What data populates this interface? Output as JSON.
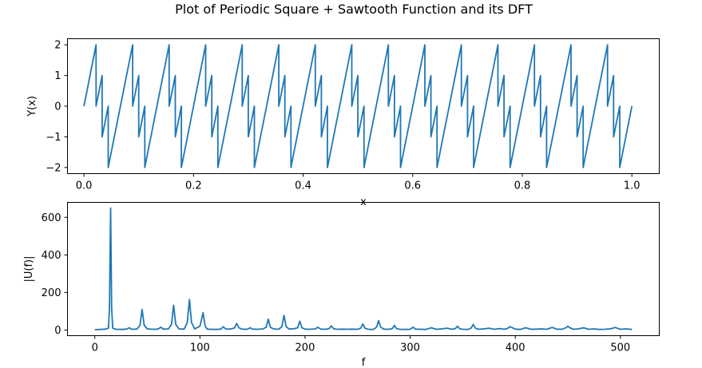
{
  "figure": {
    "title": "Plot of Periodic Square + Sawtooth Function and its DFT"
  },
  "chart_data": [
    {
      "type": "line",
      "title": "",
      "xlabel": "x",
      "ylabel": "Y(x)",
      "xlim": [
        -0.03,
        1.05
      ],
      "ylim": [
        -2.2,
        2.2
      ],
      "xticks": [
        0.0,
        0.2,
        0.4,
        0.6,
        0.8,
        1.0
      ],
      "xtick_labels": [
        "0.0",
        "0.2",
        "0.4",
        "0.6",
        "0.8",
        "1.0"
      ],
      "yticks": [
        2,
        1,
        0,
        -1,
        -2
      ],
      "ytick_labels": [
        "2",
        "1",
        "0",
        "−1",
        "−2"
      ],
      "grid": false,
      "color": "#1f77b4",
      "series": [
        {
          "x": [
            0.0,
            0.0222,
            0.0222,
            0.0333,
            0.0333,
            0.0444,
            0.0444,
            0.0667,
            0.0889,
            0.0889,
            0.1,
            0.1,
            0.1111,
            0.1111,
            0.1333,
            0.1556,
            0.1556,
            0.1667,
            0.1667,
            0.1778,
            0.1778,
            0.2,
            0.2222,
            0.2222,
            0.2333,
            0.2333,
            0.2444,
            0.2444,
            0.2667,
            0.2889,
            0.2889,
            0.3,
            0.3,
            0.3111,
            0.3111,
            0.3333,
            0.3556,
            0.3556,
            0.3667,
            0.3667,
            0.3778,
            0.3778,
            0.4,
            0.4222,
            0.4222,
            0.4333,
            0.4333,
            0.4444,
            0.4444,
            0.4667,
            0.4889,
            0.4889,
            0.5,
            0.5,
            0.5111,
            0.5111,
            0.5333,
            0.5556,
            0.5556,
            0.5667,
            0.5667,
            0.5778,
            0.5778,
            0.6,
            0.6222,
            0.6222,
            0.6333,
            0.6333,
            0.6444,
            0.6444,
            0.6667,
            0.6889,
            0.6889,
            0.7,
            0.7,
            0.7111,
            0.7111,
            0.7333,
            0.7556,
            0.7556,
            0.7667,
            0.7667,
            0.7778,
            0.7778,
            0.8,
            0.8222,
            0.8222,
            0.8333,
            0.8333,
            0.8444,
            0.8444,
            0.8667,
            0.8889,
            0.8889,
            0.9,
            0.9,
            0.9111,
            0.9111,
            0.9333,
            0.9556,
            0.9556,
            0.9667,
            0.9667,
            0.9778,
            0.9778,
            1.0
          ],
          "y": [
            0,
            2,
            0,
            1,
            -1,
            0,
            -2,
            0,
            2,
            0,
            1,
            -1,
            0,
            -2,
            0,
            2,
            0,
            1,
            -1,
            0,
            -2,
            0,
            2,
            0,
            1,
            -1,
            0,
            -2,
            0,
            2,
            0,
            1,
            -1,
            0,
            -2,
            0,
            2,
            0,
            1,
            -1,
            0,
            -2,
            0,
            2,
            0,
            1,
            -1,
            0,
            -2,
            0,
            2,
            0,
            1,
            -1,
            0,
            -2,
            0,
            2,
            0,
            1,
            -1,
            0,
            -2,
            0,
            2,
            0,
            1,
            -1,
            0,
            -2,
            0,
            2,
            0,
            1,
            -1,
            0,
            -2,
            0,
            2,
            0,
            1,
            -1,
            0,
            -2,
            0,
            2,
            0,
            1,
            -1,
            0,
            -2,
            0,
            2,
            0,
            1,
            -1,
            0,
            -2,
            0,
            2,
            0,
            1,
            -1,
            0,
            -2,
            0
          ]
        }
      ]
    },
    {
      "type": "line",
      "title": "",
      "xlabel": "f",
      "ylabel": "|U(f)|",
      "xlim": [
        -26,
        537
      ],
      "ylim": [
        -30,
        680
      ],
      "xticks": [
        0,
        100,
        200,
        300,
        400,
        500
      ],
      "xtick_labels": [
        "0",
        "100",
        "200",
        "300",
        "400",
        "500"
      ],
      "yticks": [
        600,
        400,
        200,
        0
      ],
      "ytick_labels": [
        "600",
        "400",
        "200",
        "0"
      ],
      "grid": false,
      "color": "#1f77b4",
      "series": [
        {
          "x": [
            0,
            5,
            10,
            13,
            14,
            15,
            16,
            17,
            20,
            25,
            30,
            33,
            35,
            40,
            43,
            45,
            47,
            50,
            55,
            60,
            63,
            65,
            70,
            73,
            75,
            77,
            80,
            85,
            88,
            90,
            92,
            95,
            100,
            103,
            105,
            107,
            110,
            115,
            120,
            122,
            125,
            130,
            133,
            135,
            137,
            140,
            145,
            148,
            150,
            155,
            160,
            163,
            165,
            167,
            170,
            175,
            178,
            180,
            182,
            185,
            190,
            193,
            195,
            197,
            200,
            205,
            210,
            212,
            215,
            220,
            223,
            225,
            227,
            230,
            235,
            240,
            245,
            250,
            253,
            255,
            257,
            260,
            265,
            268,
            270,
            272,
            275,
            280,
            283,
            285,
            287,
            290,
            295,
            300,
            303,
            305,
            310,
            315,
            320,
            325,
            330,
            335,
            340,
            343,
            345,
            347,
            350,
            355,
            358,
            360,
            362,
            365,
            370,
            375,
            380,
            385,
            390,
            393,
            395,
            400,
            405,
            408,
            410,
            415,
            420,
            425,
            430,
            433,
            435,
            440,
            445,
            448,
            450,
            452,
            455,
            460,
            465,
            470,
            475,
            480,
            485,
            490,
            493,
            495,
            500,
            505,
            511
          ],
          "y": [
            2,
            3,
            5,
            10,
            120,
            650,
            120,
            10,
            4,
            3,
            5,
            12,
            4,
            5,
            25,
            110,
            25,
            6,
            4,
            5,
            15,
            5,
            6,
            30,
            132,
            30,
            6,
            5,
            40,
            162,
            40,
            6,
            20,
            92,
            20,
            5,
            4,
            3,
            5,
            17,
            5,
            6,
            12,
            35,
            12,
            5,
            4,
            12,
            5,
            4,
            6,
            15,
            58,
            15,
            6,
            4,
            18,
            78,
            18,
            5,
            8,
            12,
            47,
            12,
            5,
            4,
            6,
            15,
            5,
            4,
            8,
            22,
            8,
            4,
            5,
            4,
            5,
            4,
            10,
            32,
            10,
            4,
            3,
            15,
            50,
            15,
            5,
            4,
            8,
            25,
            8,
            4,
            3,
            4,
            15,
            5,
            4,
            3,
            12,
            4,
            6,
            10,
            4,
            8,
            20,
            8,
            4,
            3,
            10,
            30,
            10,
            4,
            6,
            10,
            4,
            8,
            4,
            10,
            18,
            5,
            3,
            9,
            12,
            4,
            5,
            6,
            4,
            10,
            14,
            4,
            5,
            12,
            20,
            12,
            4,
            6,
            12,
            4,
            6,
            3,
            4,
            6,
            10,
            14,
            4,
            6,
            3
          ]
        }
      ]
    }
  ]
}
